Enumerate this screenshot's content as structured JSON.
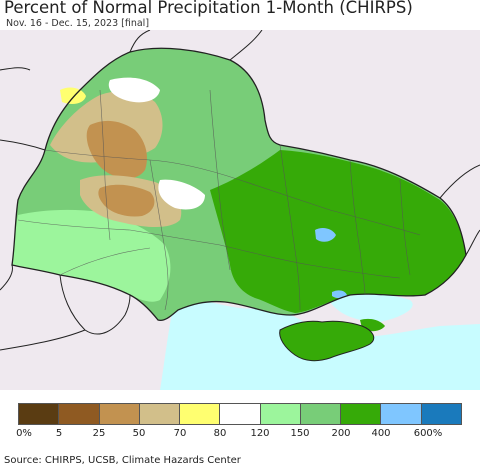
{
  "header": {
    "title": "Percent of Normal Precipitation 1-Month (CHIRPS)",
    "subtitle": "Nov. 16 - Dec. 15, 2023 [final]"
  },
  "legend": {
    "colors": [
      "#5a3c12",
      "#8f5a22",
      "#c29250",
      "#d2bf8a",
      "#ffff70",
      "#ffffff",
      "#9cf59c",
      "#78cd78",
      "#36aa08",
      "#7fc6ff",
      "#1a7abc"
    ],
    "labels": [
      "0%",
      "5",
      "25",
      "50",
      "70",
      "80",
      "120",
      "150",
      "200",
      "400",
      "600%"
    ]
  },
  "colors": {
    "sea": "#c8fcff",
    "outside": "#efe9ef",
    "border": "#222222"
  },
  "source": "Source: CHIRPS, UCSB, Climate Hazards Center"
}
